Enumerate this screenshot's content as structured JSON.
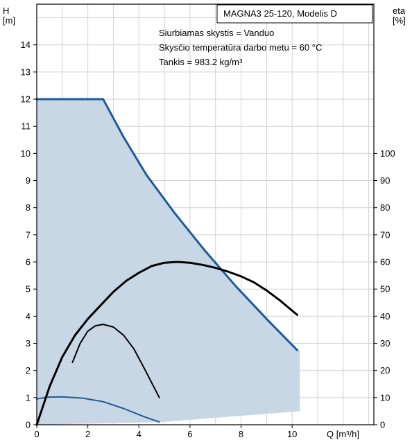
{
  "chart_data": {
    "type": "line",
    "title": "MAGNA3 25-120, Modelis D",
    "annotations": [
      "Siurbiamas skystis = Vanduo",
      "Skysčio temperatūra darbo metu = 60 °C",
      "Tankis = 983.2 kg/m³"
    ],
    "xlabel": "Q [m³/h]",
    "ylabel": "H\n[m]",
    "y2label": "eta\n[%]",
    "xlim": [
      0,
      13.2
    ],
    "ylim": [
      0,
      15.5
    ],
    "y2lim": [
      0,
      155
    ],
    "xticks": [
      0,
      2,
      4,
      6,
      8,
      10
    ],
    "yticks": [
      0,
      1,
      2,
      3,
      4,
      5,
      6,
      7,
      8,
      9,
      10,
      11,
      12,
      13,
      14
    ],
    "y2ticks": [
      0,
      10,
      20,
      30,
      40,
      50,
      60,
      70,
      80,
      90,
      100
    ],
    "grid": true,
    "colors": {
      "max_curve": "#1f5a96",
      "min_curve": "#1f5a96",
      "eta": "#000000",
      "area": "#c8d7e6"
    },
    "area": {
      "x": [
        0,
        0,
        2.6,
        3.4,
        4.3,
        5.4,
        6.6,
        7.8,
        9.0,
        10.2,
        10.3,
        10.3,
        4.9,
        0
      ],
      "y": [
        0,
        12.0,
        12.0,
        10.6,
        9.2,
        7.8,
        6.4,
        5.1,
        3.9,
        2.75,
        2.75,
        0.5,
        0.1,
        0
      ]
    },
    "series": [
      {
        "axis": "H",
        "x": [
          0,
          2.6,
          3.4,
          4.3,
          5.4,
          6.6,
          7.8,
          9.0,
          10.2
        ],
        "y": [
          12.0,
          12.0,
          10.6,
          9.2,
          7.8,
          6.4,
          5.1,
          3.9,
          2.75
        ]
      },
      {
        "axis": "H",
        "x": [
          0,
          0.4,
          1.0,
          1.8,
          2.6,
          3.4,
          4.2,
          4.8
        ],
        "y": [
          0.95,
          1.02,
          1.03,
          0.98,
          0.85,
          0.6,
          0.3,
          0.1
        ]
      },
      {
        "axis": "eta",
        "x": [
          0,
          0.5,
          1.0,
          1.5,
          2.0,
          2.5,
          3.0,
          3.5,
          4.0,
          4.5,
          5.0,
          5.5,
          6.0,
          6.5,
          7.0,
          7.5,
          8.0,
          8.5,
          9.0,
          9.5,
          10.2
        ],
        "y": [
          0,
          14,
          25,
          33,
          39,
          44,
          49,
          53,
          56,
          58.5,
          59.7,
          60,
          59.7,
          58.9,
          57.8,
          56.4,
          54.7,
          52.5,
          49.5,
          46,
          40.5
        ]
      },
      {
        "axis": "eta",
        "x": [
          1.4,
          1.7,
          2.0,
          2.3,
          2.6,
          3.0,
          3.4,
          3.8,
          4.2,
          4.5,
          4.8
        ],
        "y": [
          23,
          30,
          34.5,
          36.5,
          37,
          36,
          33,
          28,
          21,
          15.5,
          10
        ]
      }
    ]
  }
}
